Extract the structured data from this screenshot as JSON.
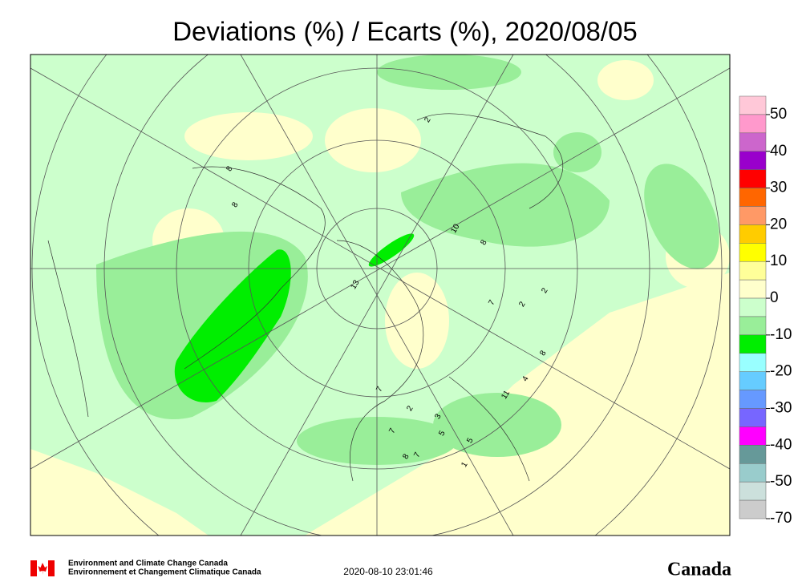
{
  "title": "Deviations (%) / Ecarts (%), 2020/08/05",
  "colorbar": {
    "colors": [
      "#ffc8d8",
      "#ff99cc",
      "#cc66cc",
      "#9900cc",
      "#ff0000",
      "#ff6600",
      "#ff9966",
      "#ffcc00",
      "#ffff00",
      "#ffff99",
      "#ffffcc",
      "#ccffcc",
      "#99ee99",
      "#00ee00",
      "#99ffff",
      "#66ccff",
      "#6699ff",
      "#7766ff",
      "#ff00ff",
      "#669999",
      "#99cccc",
      "#cce0dc",
      "#cccccc"
    ],
    "labels": [
      "50",
      "40",
      "30",
      "20",
      "10",
      "0",
      "-10",
      "-20",
      "-30",
      "-40",
      "-50",
      "-70"
    ]
  },
  "station_labels": [
    "8",
    "8",
    "13",
    "2",
    "10",
    "8",
    "7",
    "2",
    "2",
    "8",
    "4",
    "11",
    "7",
    "2",
    "3",
    "5",
    "5",
    "7",
    "7",
    "8",
    "1"
  ],
  "footer": {
    "agency_en": "Environment and Climate Change Canada",
    "agency_fr": "Environnement et Changement Climatique Canada",
    "timestamp": "2020-08-10 23:01:46",
    "wordmark": "Canada"
  }
}
